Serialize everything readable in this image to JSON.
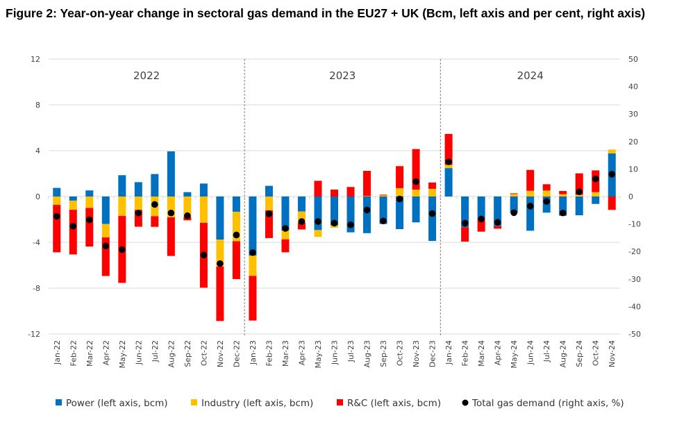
{
  "chart_data": {
    "type": "bar",
    "stacked": true,
    "title": "Figure 2: Year-on-year change in sectoral gas demand in the EU27 + UK (Bcm, left axis and per cent, right axis)",
    "categories": [
      "Jan-22",
      "Feb-22",
      "Mar-22",
      "Apr-22",
      "May-22",
      "Jun-22",
      "Jul-22",
      "Aug-22",
      "Sep-22",
      "Oct-22",
      "Nov-22",
      "Dec-22",
      "Jan-23",
      "Feb-23",
      "Mar-23",
      "Apr-23",
      "May-23",
      "Jun-23",
      "Jul-23",
      "Aug-23",
      "Sep-23",
      "Oct-23",
      "Nov-23",
      "Dec-23",
      "Jan-24",
      "Feb-24",
      "Mar-24",
      "Apr-24",
      "May-24",
      "Jun-24",
      "Jul-24",
      "Aug-24",
      "Sep-24",
      "Oct-24",
      "Nov-24"
    ],
    "year_labels": [
      "2022",
      "2023",
      "2024"
    ],
    "ylim_left": [
      -12,
      12
    ],
    "yticks_left": [
      "12",
      "8",
      "4",
      "0",
      "-4",
      "-8",
      "-12"
    ],
    "ylim_right": [
      -50,
      50
    ],
    "yticks_right": [
      "50",
      "40",
      "30",
      "20",
      "10",
      "0",
      "-10",
      "-20",
      "-30",
      "-40",
      "-50"
    ],
    "grid": true,
    "legend_position": "bottom",
    "series": [
      {
        "name": "Power (left axis, bcm)",
        "axis": "left",
        "kind": "bar",
        "color": "#0070c0",
        "values": [
          0.75,
          -0.36,
          0.53,
          -2.4,
          1.86,
          1.25,
          1.96,
          3.94,
          0.38,
          1.13,
          -3.76,
          -1.33,
          -5.17,
          0.93,
          -2.99,
          -1.31,
          -2.93,
          -2.53,
          -3.13,
          -3.2,
          -2.4,
          -2.85,
          -2.26,
          -3.88,
          2.48,
          -2.69,
          -1.98,
          -2.59,
          -1.43,
          -2.99,
          -1.41,
          -1.68,
          -1.64,
          -0.65,
          3.76
        ]
      },
      {
        "name": "Industry (left axis, bcm)",
        "axis": "left",
        "kind": "bar",
        "color": "#ffc000",
        "values": [
          -0.73,
          -0.8,
          -1.0,
          -1.17,
          -1.7,
          -1.17,
          -1.72,
          -1.82,
          -1.78,
          -2.3,
          -2.36,
          -2.57,
          -1.76,
          -1.21,
          -0.75,
          -0.97,
          -0.6,
          -0.2,
          0,
          0.04,
          0.1,
          0.73,
          0.6,
          0.67,
          0.28,
          0,
          0,
          0,
          0.22,
          0.5,
          0.52,
          0.2,
          0.14,
          0.38,
          0.34
        ]
      },
      {
        "name": "R&C (left axis, bcm)",
        "axis": "left",
        "kind": "bar",
        "color": "#ff0000",
        "values": [
          -4.14,
          -3.9,
          -3.37,
          -3.37,
          -5.84,
          -1.47,
          -0.93,
          -3.37,
          -0.3,
          -5.66,
          -4.75,
          -3.31,
          -3.9,
          -2.42,
          -1.13,
          -0.6,
          1.37,
          0.6,
          0.83,
          2.2,
          0.06,
          1.92,
          3.54,
          0.55,
          2.7,
          -1.25,
          -1.09,
          -0.22,
          0.06,
          1.82,
          0.55,
          0.28,
          1.88,
          1.9,
          -1.17
        ]
      },
      {
        "name": "Total gas demand (right axis, %)",
        "axis": "right",
        "kind": "dot",
        "color": "#000000",
        "values": [
          -7.2,
          -10.8,
          -8.5,
          -18,
          -19.3,
          -6,
          -2.9,
          -6,
          -7,
          -21.3,
          -24.4,
          -14,
          -20.4,
          -6.3,
          -11.6,
          -9.1,
          -9.1,
          -9.7,
          -10.3,
          -4.9,
          -8.9,
          -0.9,
          5.4,
          -6.2,
          12.6,
          -9.7,
          -8.2,
          -9.4,
          -5.9,
          -3.5,
          -1.8,
          -6,
          1.7,
          6.4,
          8.1
        ]
      }
    ]
  }
}
